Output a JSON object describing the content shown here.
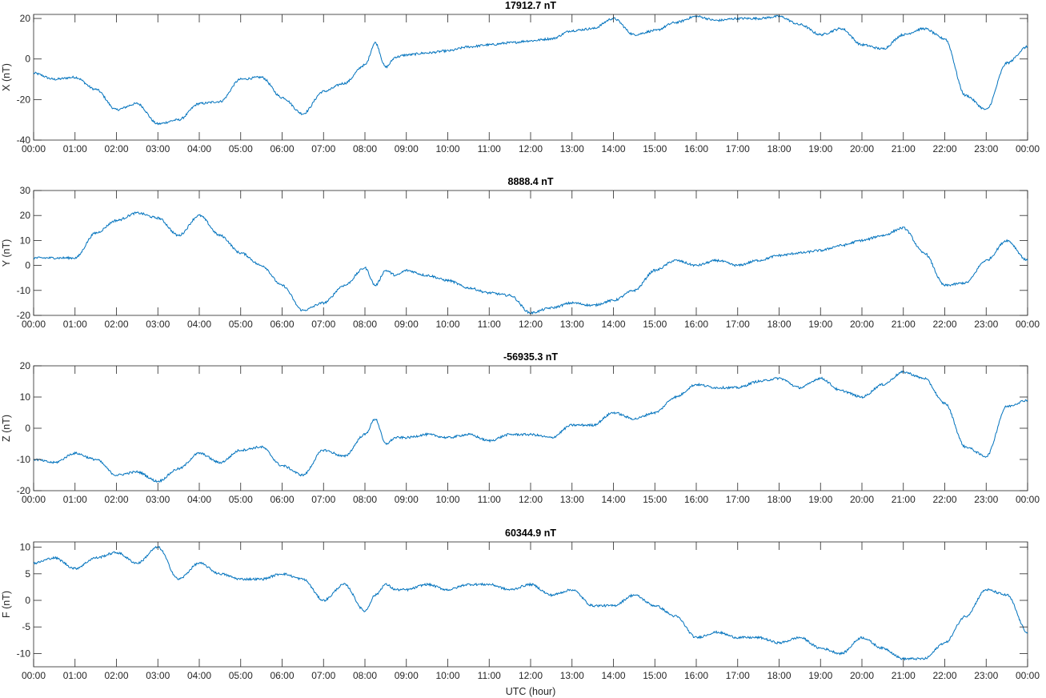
{
  "chart_data": [
    {
      "type": "line",
      "title": "17912.7 nT",
      "ylabel": "X (nT)",
      "xlabel": "",
      "ylim": [
        -40,
        22
      ],
      "yticks": [
        "-40",
        "-20",
        "0",
        "20"
      ],
      "xticks": [
        "00:00",
        "01:00",
        "02:00",
        "03:00",
        "04:00",
        "05:00",
        "06:00",
        "07:00",
        "08:00",
        "09:00",
        "10:00",
        "11:00",
        "12:00",
        "13:00",
        "14:00",
        "15:00",
        "16:00",
        "17:00",
        "18:00",
        "19:00",
        "20:00",
        "21:00",
        "22:00",
        "23:00",
        "00:00"
      ],
      "x": [
        0,
        0.5,
        1.0,
        1.5,
        2.0,
        2.5,
        3.0,
        3.5,
        4.0,
        4.5,
        5.0,
        5.5,
        6.0,
        6.5,
        7.0,
        7.5,
        8.0,
        8.25,
        8.5,
        8.75,
        9.0,
        9.5,
        10.0,
        10.5,
        11.0,
        11.5,
        12.0,
        12.5,
        13.0,
        13.5,
        14.0,
        14.5,
        15.0,
        15.5,
        16.0,
        16.5,
        17.0,
        17.5,
        18.0,
        18.5,
        19.0,
        19.5,
        20.0,
        20.5,
        21.0,
        21.5,
        22.0,
        22.5,
        23.0,
        23.5,
        24.0
      ],
      "series": [
        {
          "values": [
            -7,
            -10,
            -9,
            -15,
            -25,
            -22,
            -32,
            -30,
            -22,
            -21,
            -10,
            -9,
            -19,
            -27,
            -16,
            -12,
            -3,
            8,
            -4,
            1,
            2,
            3,
            4,
            6,
            7,
            8,
            9,
            10,
            14,
            15,
            20,
            12,
            14,
            18,
            21,
            19,
            20,
            20,
            21,
            17,
            12,
            15,
            7,
            5,
            12,
            15,
            10,
            -18,
            -25,
            -2,
            6
          ]
        }
      ]
    },
    {
      "type": "line",
      "title": "8888.4 nT",
      "ylabel": "Y (nT)",
      "xlabel": "",
      "ylim": [
        -20,
        30
      ],
      "yticks": [
        "-20",
        "-10",
        "0",
        "10",
        "20",
        "30"
      ],
      "xticks": [
        "00:00",
        "01:00",
        "02:00",
        "03:00",
        "04:00",
        "05:00",
        "06:00",
        "07:00",
        "08:00",
        "09:00",
        "10:00",
        "11:00",
        "12:00",
        "13:00",
        "14:00",
        "15:00",
        "16:00",
        "17:00",
        "18:00",
        "19:00",
        "20:00",
        "21:00",
        "22:00",
        "23:00",
        "00:00"
      ],
      "x": [
        0,
        0.5,
        1.0,
        1.5,
        2.0,
        2.5,
        3.0,
        3.5,
        4.0,
        4.5,
        5.0,
        5.5,
        6.0,
        6.5,
        7.0,
        7.5,
        8.0,
        8.25,
        8.5,
        8.75,
        9.0,
        9.5,
        10.0,
        10.5,
        11.0,
        11.5,
        12.0,
        12.5,
        13.0,
        13.5,
        14.0,
        14.5,
        15.0,
        15.5,
        16.0,
        16.5,
        17.0,
        17.5,
        18.0,
        18.5,
        19.0,
        19.5,
        20.0,
        20.5,
        21.0,
        21.5,
        22.0,
        22.5,
        23.0,
        23.5,
        24.0
      ],
      "series": [
        {
          "values": [
            3,
            3,
            3,
            13,
            18,
            21,
            19,
            12,
            20,
            12,
            5,
            0,
            -8,
            -18,
            -15,
            -8,
            -1,
            -8,
            -2,
            -4,
            -2,
            -4,
            -6,
            -9,
            -11,
            -12,
            -19,
            -17,
            -15,
            -16,
            -14,
            -10,
            -2,
            2,
            0,
            2,
            0,
            2,
            4,
            5,
            6,
            8,
            10,
            12,
            15,
            5,
            -8,
            -7,
            2,
            10,
            2
          ]
        }
      ]
    },
    {
      "type": "line",
      "title": "-56935.3 nT",
      "ylabel": "Z (nT)",
      "xlabel": "",
      "ylim": [
        -20,
        20
      ],
      "yticks": [
        "-20",
        "-10",
        "0",
        "10",
        "20"
      ],
      "xticks": [
        "00:00",
        "01:00",
        "02:00",
        "03:00",
        "04:00",
        "05:00",
        "06:00",
        "07:00",
        "08:00",
        "09:00",
        "10:00",
        "11:00",
        "12:00",
        "13:00",
        "14:00",
        "15:00",
        "16:00",
        "17:00",
        "18:00",
        "19:00",
        "20:00",
        "21:00",
        "22:00",
        "23:00",
        "00:00"
      ],
      "x": [
        0,
        0.5,
        1.0,
        1.5,
        2.0,
        2.5,
        3.0,
        3.5,
        4.0,
        4.5,
        5.0,
        5.5,
        6.0,
        6.5,
        7.0,
        7.5,
        8.0,
        8.25,
        8.5,
        8.75,
        9.0,
        9.5,
        10.0,
        10.5,
        11.0,
        11.5,
        12.0,
        12.5,
        13.0,
        13.5,
        14.0,
        14.5,
        15.0,
        15.5,
        16.0,
        16.5,
        17.0,
        17.5,
        18.0,
        18.5,
        19.0,
        19.5,
        20.0,
        20.5,
        21.0,
        21.5,
        22.0,
        22.5,
        23.0,
        23.5,
        24.0
      ],
      "series": [
        {
          "values": [
            -10,
            -11,
            -8,
            -10,
            -15,
            -14,
            -17,
            -13,
            -8,
            -11,
            -7,
            -6,
            -12,
            -15,
            -7,
            -9,
            -2,
            3,
            -5,
            -3,
            -3,
            -2,
            -3,
            -2,
            -4,
            -2,
            -2,
            -3,
            1,
            1,
            5,
            3,
            5,
            10,
            14,
            13,
            13,
            15,
            16,
            13,
            16,
            12,
            10,
            14,
            18,
            16,
            8,
            -6,
            -9,
            7,
            9
          ]
        }
      ]
    },
    {
      "type": "line",
      "title": "60344.9 nT",
      "ylabel": "F (nT)",
      "xlabel": "UTC (hour)",
      "ylim": [
        -12.5,
        11
      ],
      "yticks": [
        "-10",
        "-5",
        "0",
        "5",
        "10"
      ],
      "xticks": [
        "00:00",
        "01:00",
        "02:00",
        "03:00",
        "04:00",
        "05:00",
        "06:00",
        "07:00",
        "08:00",
        "09:00",
        "10:00",
        "11:00",
        "12:00",
        "13:00",
        "14:00",
        "15:00",
        "16:00",
        "17:00",
        "18:00",
        "19:00",
        "20:00",
        "21:00",
        "22:00",
        "23:00",
        "00:00"
      ],
      "x": [
        0,
        0.5,
        1.0,
        1.5,
        2.0,
        2.5,
        3.0,
        3.5,
        4.0,
        4.5,
        5.0,
        5.5,
        6.0,
        6.5,
        7.0,
        7.5,
        8.0,
        8.25,
        8.5,
        8.75,
        9.0,
        9.5,
        10.0,
        10.5,
        11.0,
        11.5,
        12.0,
        12.5,
        13.0,
        13.5,
        14.0,
        14.5,
        15.0,
        15.5,
        16.0,
        16.5,
        17.0,
        17.5,
        18.0,
        18.5,
        19.0,
        19.5,
        20.0,
        20.5,
        21.0,
        21.5,
        22.0,
        22.5,
        23.0,
        23.5,
        24.0
      ],
      "series": [
        {
          "values": [
            7,
            8,
            6,
            8,
            9,
            7,
            10,
            4,
            7,
            5,
            4,
            4,
            5,
            4,
            0,
            3,
            -2,
            1,
            3,
            2,
            2,
            3,
            2,
            3,
            3,
            2,
            3,
            1,
            2,
            -1,
            -1,
            1,
            -1,
            -3,
            -7,
            -6,
            -7,
            -7,
            -8,
            -7,
            -9,
            -10,
            -7,
            -9,
            -11,
            -11,
            -8,
            -3,
            2,
            1,
            -6
          ]
        }
      ]
    }
  ],
  "colors": {
    "line": "#0072bd",
    "axes": "#262626"
  }
}
